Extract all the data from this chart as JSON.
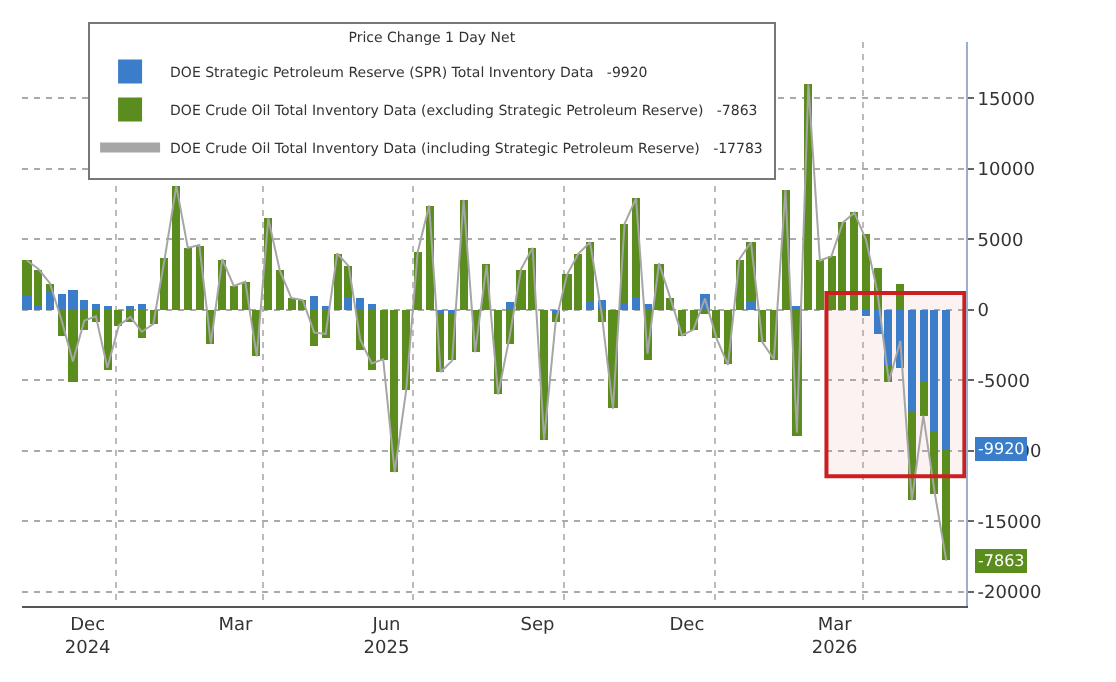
{
  "chart_data": {
    "type": "bar",
    "stacked": true,
    "x": [
      "2024-11-08",
      "2024-11-15",
      "2024-11-22",
      "2024-11-29",
      "2024-12-06",
      "2024-12-13",
      "2024-12-20",
      "2024-12-27",
      "2025-01-03",
      "2025-01-10",
      "2025-01-17",
      "2025-01-24",
      "2025-01-31",
      "2025-02-07",
      "2025-02-14",
      "2025-02-21",
      "2025-02-28",
      "2025-03-07",
      "2025-03-14",
      "2025-03-21",
      "2025-03-28",
      "2025-04-04",
      "2025-04-11",
      "2025-04-18",
      "2025-04-25",
      "2025-05-02",
      "2025-05-09",
      "2025-05-16",
      "2025-05-23",
      "2025-05-30",
      "2025-06-06",
      "2025-06-13",
      "2025-06-20",
      "2025-06-27",
      "2025-07-04",
      "2025-07-11",
      "2025-07-18",
      "2025-07-25",
      "2025-08-01",
      "2025-08-08",
      "2025-08-15",
      "2025-08-22",
      "2025-08-29",
      "2025-09-05",
      "2025-09-12",
      "2025-09-19",
      "2025-09-26",
      "2025-10-03",
      "2025-10-10",
      "2025-10-17",
      "2025-10-24",
      "2025-10-31",
      "2025-11-07",
      "2025-11-14",
      "2025-11-21",
      "2025-11-28",
      "2025-12-05",
      "2025-12-12",
      "2025-12-19",
      "2025-12-26",
      "2026-01-02",
      "2026-01-09",
      "2026-01-16",
      "2026-01-23",
      "2026-01-30",
      "2026-02-06",
      "2026-02-13",
      "2026-02-20",
      "2026-02-27",
      "2026-03-06",
      "2026-03-13",
      "2026-03-20",
      "2026-03-27",
      "2026-04-03",
      "2026-04-10",
      "2026-04-17",
      "2026-04-24",
      "2026-05-01",
      "2026-05-08",
      "2026-05-15",
      "2026-05-22"
    ],
    "series": [
      {
        "name": "DOE Strategic Petroleum Reserve (SPR) Total Inventory Data   -9920",
        "color": "#3b7dc8",
        "values": [
          1000,
          300,
          1200,
          1100,
          1450,
          650,
          450,
          200,
          0,
          300,
          450,
          0,
          0,
          0,
          0,
          0,
          0,
          0,
          0,
          0,
          0,
          0,
          0,
          0,
          0,
          1000,
          300,
          0,
          800,
          800,
          400,
          0,
          0,
          0,
          0,
          0,
          -300,
          -300,
          0,
          0,
          0,
          0,
          500,
          0,
          0,
          0,
          -300,
          0,
          0,
          600,
          700,
          0,
          400,
          800,
          400,
          0,
          0,
          0,
          0,
          1100,
          0,
          0,
          0,
          500,
          0,
          0,
          0,
          300,
          0,
          0,
          0,
          0,
          0,
          -400,
          -1700,
          -4000,
          -4100,
          -7200,
          -5100,
          -8600,
          -9920
        ]
      },
      {
        "name": "DOE Crude Oil Total Inventory Data (excluding Strategic Petroleum Reserve)   -7863",
        "color": "#5b8c1e",
        "values": [
          2500,
          2600,
          700,
          -1800,
          -5100,
          -1400,
          -900,
          -4300,
          -1100,
          -800,
          -2000,
          -1000,
          3700,
          8800,
          4400,
          4600,
          -2400,
          3600,
          1700,
          2000,
          -3300,
          6500,
          2800,
          850,
          700,
          -2600,
          -2000,
          4000,
          2300,
          -2900,
          -4200,
          -3500,
          -11500,
          -5700,
          4100,
          7400,
          -4100,
          -3300,
          7800,
          -3000,
          3200,
          -6000,
          -2400,
          2900,
          4400,
          -9200,
          -600,
          2500,
          4000,
          4200,
          -900,
          -7000,
          5700,
          7100,
          -3500,
          3300,
          800,
          -1800,
          -1400,
          -300,
          -2000,
          -3900,
          3600,
          4300,
          -2300,
          -3500,
          8500,
          -9000,
          16000,
          3500,
          3800,
          6200,
          6900,
          5400,
          3000,
          -1100,
          1900,
          -6300,
          -2400,
          -4400,
          -7863
        ]
      },
      {
        "name": "DOE Crude Oil Total Inventory Data (including Strategic Petroleum Reserve)   -17783",
        "color": "#a6a6a6",
        "type": "line",
        "values": [
          3500,
          2900,
          1900,
          -700,
          -3650,
          -750,
          -450,
          -4100,
          -1100,
          -500,
          -1550,
          -1000,
          3700,
          8800,
          4400,
          4600,
          -2400,
          3600,
          1700,
          2000,
          -3300,
          6500,
          2800,
          850,
          700,
          -1600,
          -1700,
          4000,
          3100,
          -2100,
          -3800,
          -3500,
          -11500,
          -5700,
          4100,
          7400,
          -4400,
          -3600,
          7800,
          -3000,
          3200,
          -6000,
          -1900,
          2900,
          4400,
          -9200,
          -900,
          2500,
          4000,
          4800,
          -200,
          -7000,
          6100,
          7900,
          -3100,
          3300,
          800,
          -1800,
          -1400,
          800,
          -2000,
          -3900,
          3600,
          4800,
          -2300,
          -3500,
          8500,
          -8700,
          16000,
          3500,
          3800,
          6200,
          6900,
          5000,
          1300,
          -5100,
          -2200,
          -13500,
          -7500,
          -13000,
          -17783
        ]
      }
    ],
    "legend_title": "Price Change 1 Day Net",
    "legend": "top",
    "xlim": [
      "2024-11-05",
      "2026-06-03"
    ],
    "xticks": [
      {
        "value": "2024-12-15",
        "label": "Dec\n2024"
      },
      {
        "value": "2025-03-15",
        "label": "Mar"
      },
      {
        "value": "2025-06-15",
        "label": "Jun\n2025"
      },
      {
        "value": "2025-09-15",
        "label": "Sep"
      },
      {
        "value": "2025-12-15",
        "label": "Dec"
      },
      {
        "value": "2026-03-15",
        "label": "Mar\n2026"
      }
    ],
    "ylim": [
      -21000,
      19000
    ],
    "yticks": [
      -20000,
      -15000,
      -10000,
      -5000,
      0,
      5000,
      10000,
      15000
    ],
    "grid": true,
    "bands": [
      {
        "axis": "x",
        "from": "2026-03-10",
        "to": "2026-06-02",
        "color": "#cc1f1f"
      }
    ],
    "annotations": [
      {
        "text": "-9920",
        "x": "2026-05-22",
        "y": -9920
      },
      {
        "text": "-7863",
        "x": "2026-05-22",
        "y": -17783
      }
    ]
  }
}
